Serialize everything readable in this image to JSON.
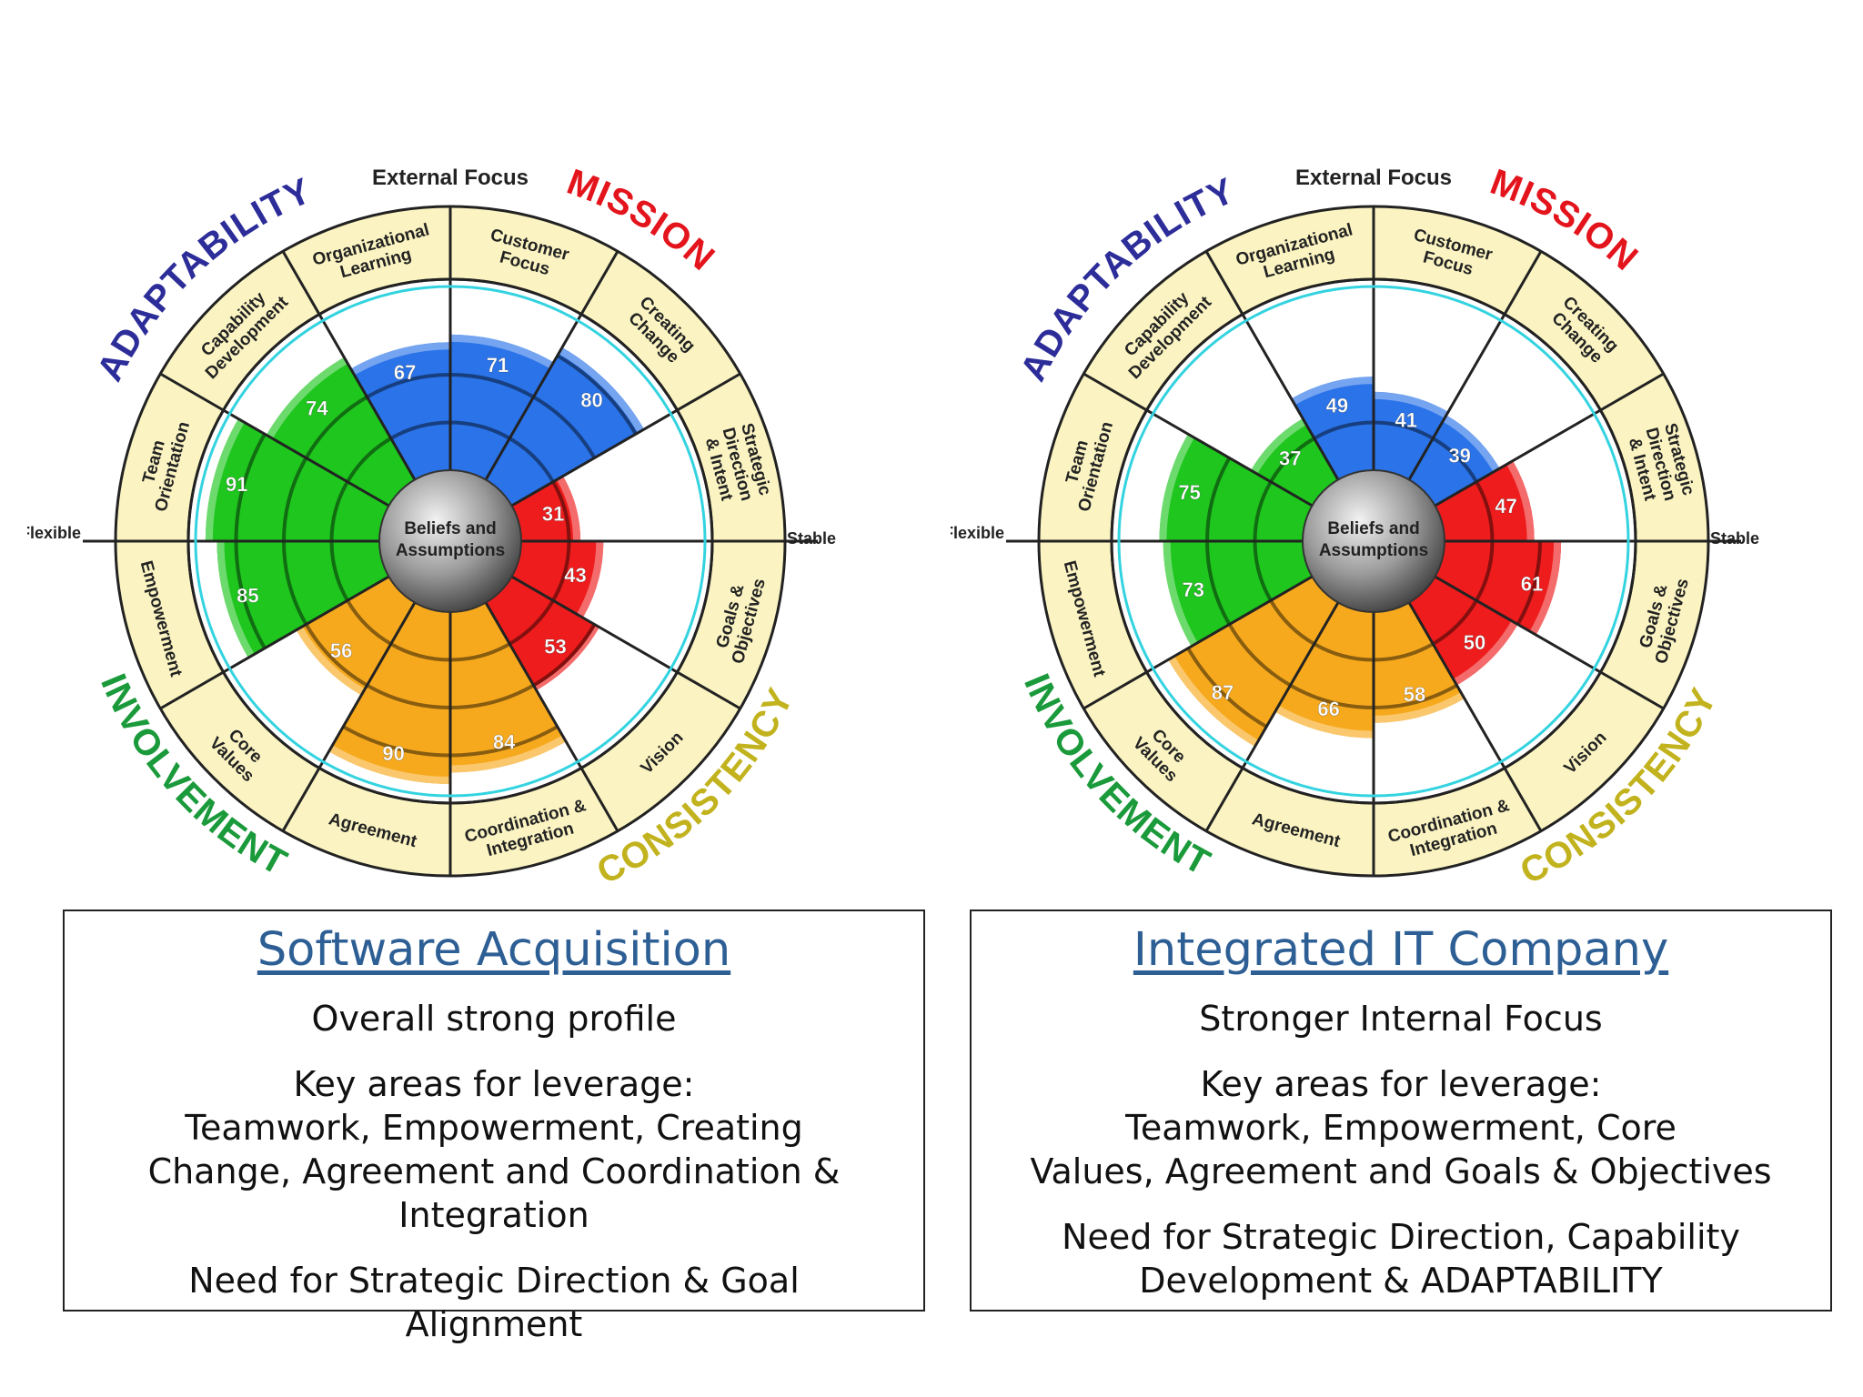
{
  "chart_data": [
    {
      "type": "circumplex",
      "top_label": "External Focus",
      "left_label": "Flexible",
      "right_label": "Stable",
      "center_label": [
        "Beliefs and",
        "Assumptions"
      ],
      "quadrants": [
        {
          "name": "ADAPTABILITY",
          "color": "#2d2d9a",
          "fill": "#2a73e8"
        },
        {
          "name": "MISSION",
          "color": "#e3141c",
          "fill": "#ee1c1c"
        },
        {
          "name": "CONSISTENCY",
          "color": "#c2b31e",
          "fill": "#f7a91d"
        },
        {
          "name": "INVOLVEMENT",
          "color": "#1a9a3a",
          "fill": "#1ec61e"
        }
      ],
      "scale": [
        0,
        100
      ],
      "segments": [
        {
          "trait": "Organizational Learning",
          "quadrant": "ADAPTABILITY",
          "value": 67
        },
        {
          "trait": "Customer Focus",
          "quadrant": "ADAPTABILITY",
          "value": 71
        },
        {
          "trait": "Creating Change",
          "quadrant": "ADAPTABILITY",
          "value": 80
        },
        {
          "trait": "Strategic Direction & Intent",
          "quadrant": "MISSION",
          "value": 31
        },
        {
          "trait": "Goals & Objectives",
          "quadrant": "MISSION",
          "value": 43
        },
        {
          "trait": "Vision",
          "quadrant": "MISSION",
          "value": 53
        },
        {
          "trait": "Coordination & Integration",
          "quadrant": "CONSISTENCY",
          "value": 84
        },
        {
          "trait": "Agreement",
          "quadrant": "CONSISTENCY",
          "value": 90
        },
        {
          "trait": "Core Values",
          "quadrant": "CONSISTENCY",
          "value": 56
        },
        {
          "trait": "Empowerment",
          "quadrant": "INVOLVEMENT",
          "value": 85
        },
        {
          "trait": "Team Orientation",
          "quadrant": "INVOLVEMENT",
          "value": 91
        },
        {
          "trait": "Capability Development",
          "quadrant": "INVOLVEMENT",
          "value": 74
        }
      ]
    },
    {
      "type": "circumplex",
      "top_label": "External Focus",
      "left_label": "Flexible",
      "right_label": "Stable",
      "center_label": [
        "Beliefs and",
        "Assumptions"
      ],
      "quadrants": [
        {
          "name": "ADAPTABILITY",
          "color": "#2d2d9a",
          "fill": "#2a73e8"
        },
        {
          "name": "MISSION",
          "color": "#e3141c",
          "fill": "#ee1c1c"
        },
        {
          "name": "CONSISTENCY",
          "color": "#c2b31e",
          "fill": "#f7a91d"
        },
        {
          "name": "INVOLVEMENT",
          "color": "#1a9a3a",
          "fill": "#1ec61e"
        }
      ],
      "scale": [
        0,
        100
      ],
      "segments": [
        {
          "trait": "Organizational Learning",
          "quadrant": "ADAPTABILITY",
          "value": 49
        },
        {
          "trait": "Customer Focus",
          "quadrant": "ADAPTABILITY",
          "value": 41
        },
        {
          "trait": "Creating Change",
          "quadrant": "ADAPTABILITY",
          "value": 39
        },
        {
          "trait": "Strategic Direction & Intent",
          "quadrant": "MISSION",
          "value": 47
        },
        {
          "trait": "Goals & Objectives",
          "quadrant": "MISSION",
          "value": 61
        },
        {
          "trait": "Vision",
          "quadrant": "MISSION",
          "value": 50
        },
        {
          "trait": "Coordination & Integration",
          "quadrant": "CONSISTENCY",
          "value": 58
        },
        {
          "trait": "Agreement",
          "quadrant": "CONSISTENCY",
          "value": 66
        },
        {
          "trait": "Core Values",
          "quadrant": "CONSISTENCY",
          "value": 87
        },
        {
          "trait": "Empowerment",
          "quadrant": "INVOLVEMENT",
          "value": 73
        },
        {
          "trait": "Team Orientation",
          "quadrant": "INVOLVEMENT",
          "value": 75
        },
        {
          "trait": "Capability Development",
          "quadrant": "INVOLVEMENT",
          "value": 37
        }
      ]
    }
  ],
  "trait_labels": {
    "Organizational Learning": [
      "Organizational",
      "Learning"
    ],
    "Customer Focus": [
      "Customer",
      "Focus"
    ],
    "Creating Change": [
      "Creating",
      "Change"
    ],
    "Strategic Direction & Intent": [
      "Strategic",
      "Direction",
      "& Intent"
    ],
    "Goals & Objectives": [
      "Goals &",
      "Objectives"
    ],
    "Vision": [
      "Vision"
    ],
    "Coordination & Integration": [
      "Coordination &",
      "Integration"
    ],
    "Agreement": [
      "Agreement"
    ],
    "Core Values": [
      "Core",
      "Values"
    ],
    "Empowerment": [
      "Empowerment"
    ],
    "Team Orientation": [
      "Team",
      "Orientation"
    ],
    "Capability Development": [
      "Capability",
      "Development"
    ]
  },
  "panels": [
    {
      "title": "Software Acquisition",
      "summary": "Overall strong profile",
      "leverage_heading": "Key areas for leverage:",
      "leverage_lines": [
        "Teamwork, Empowerment, Creating",
        "Change, Agreement and Coordination &",
        "Integration"
      ],
      "need_lines": [
        "Need for Strategic Direction & Goal",
        "Alignment"
      ]
    },
    {
      "title": "Integrated IT Company",
      "summary": "Stronger Internal Focus",
      "leverage_heading": "Key areas for leverage:",
      "leverage_lines": [
        "Teamwork, Empowerment, Core",
        "Values, Agreement and Goals & Objectives"
      ],
      "need_lines": [
        "Need for Strategic Direction, Capability",
        "Development & ADAPTABILITY"
      ]
    }
  ]
}
